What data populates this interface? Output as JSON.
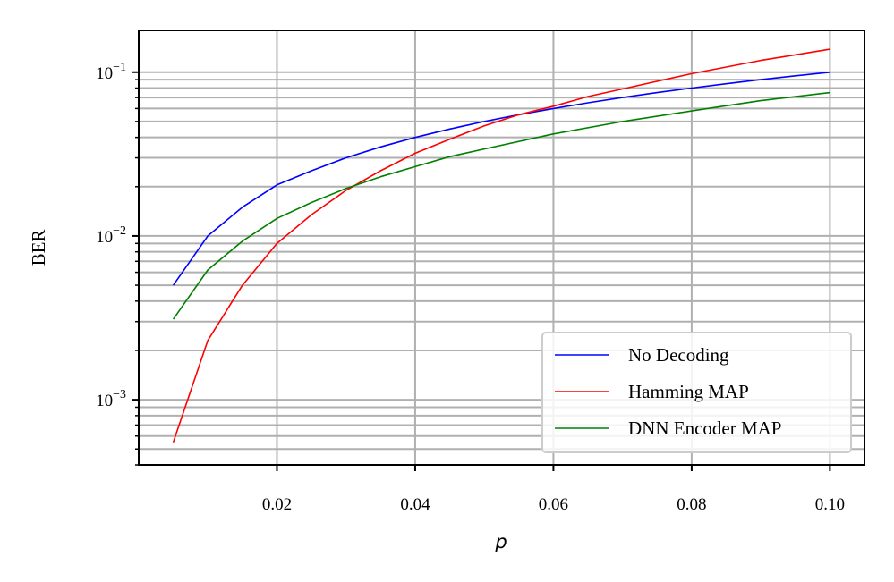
{
  "chart_data": {
    "type": "line",
    "xlabel": "p",
    "ylabel": "BER",
    "xlim": [
      0.0,
      0.105
    ],
    "ylim": [
      0.0004,
      0.18
    ],
    "yscale": "log",
    "x_ticks": [
      0.02,
      0.04,
      0.06,
      0.08,
      0.1
    ],
    "x_tick_labels": [
      "0.02",
      "0.04",
      "0.06",
      "0.08",
      "0.10"
    ],
    "y_major_ticks": [
      0.001,
      0.01,
      0.1
    ],
    "y_tick_labels": [
      {
        "base": "10",
        "exp": "−3"
      },
      {
        "base": "10",
        "exp": "−2"
      },
      {
        "base": "10",
        "exp": "−1"
      }
    ],
    "grid": true,
    "legend_position": "bottom-right",
    "series": [
      {
        "name": "No Decoding",
        "color": "#0000ff",
        "x": [
          0.005,
          0.01,
          0.015,
          0.02,
          0.025,
          0.03,
          0.035,
          0.04,
          0.045,
          0.05,
          0.055,
          0.06,
          0.065,
          0.07,
          0.075,
          0.08,
          0.085,
          0.09,
          0.095,
          0.1
        ],
        "y": [
          0.005,
          0.01,
          0.015,
          0.0205,
          0.025,
          0.03,
          0.035,
          0.04,
          0.045,
          0.05,
          0.055,
          0.06,
          0.065,
          0.07,
          0.075,
          0.08,
          0.085,
          0.09,
          0.095,
          0.1
        ]
      },
      {
        "name": "Hamming MAP",
        "color": "#ff0000",
        "x": [
          0.005,
          0.01,
          0.015,
          0.02,
          0.025,
          0.03,
          0.035,
          0.04,
          0.045,
          0.05,
          0.055,
          0.06,
          0.065,
          0.07,
          0.08,
          0.09,
          0.1
        ],
        "y": [
          0.00055,
          0.0023,
          0.005,
          0.009,
          0.0135,
          0.019,
          0.025,
          0.032,
          0.039,
          0.047,
          0.055,
          0.062,
          0.071,
          0.079,
          0.098,
          0.118,
          0.138
        ]
      },
      {
        "name": "DNN Encoder MAP",
        "color": "#008000",
        "x": [
          0.005,
          0.01,
          0.015,
          0.02,
          0.025,
          0.03,
          0.035,
          0.04,
          0.045,
          0.05,
          0.06,
          0.07,
          0.08,
          0.09,
          0.1
        ],
        "y": [
          0.0031,
          0.0062,
          0.0093,
          0.0128,
          0.016,
          0.0195,
          0.023,
          0.0265,
          0.0305,
          0.034,
          0.042,
          0.05,
          0.058,
          0.067,
          0.075
        ]
      }
    ]
  }
}
